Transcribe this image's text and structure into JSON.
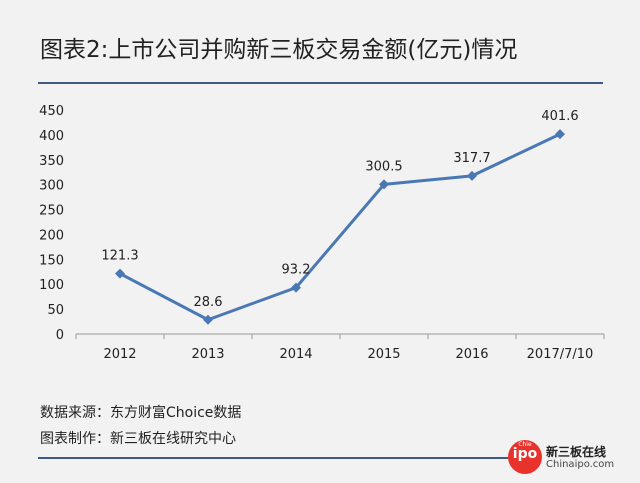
{
  "page": {
    "title": "图表2:上市公司并购新三板交易金额(亿元)情况",
    "source_note": "数据来源：东方财富Choice数据",
    "maker_note": "图表制作：新三板在线研究中心"
  },
  "logo": {
    "circle_sub": "Chie",
    "circle_text": "ipo",
    "name": "新三板在线",
    "domain": "Chinaipo.com"
  },
  "colors": {
    "line": "#4a78b4",
    "marker": "#4a78b4",
    "accent": "#e8332d"
  },
  "chart_data": {
    "type": "line",
    "title": "",
    "xlabel": "",
    "ylabel": "",
    "categories": [
      "2012",
      "2013",
      "2014",
      "2015",
      "2016",
      "2017/7/10"
    ],
    "series": [
      {
        "values": [
          121.3,
          28.6,
          93.2,
          300.5,
          317.7,
          401.6
        ],
        "labels": [
          "121.3",
          "28.6",
          "93.2",
          "300.5",
          "317.7",
          "401.6"
        ]
      }
    ],
    "ylim": [
      0,
      450
    ],
    "yticks": [
      "0",
      "50",
      "100",
      "150",
      "200",
      "250",
      "300",
      "350",
      "400",
      "450"
    ],
    "grid": false,
    "legend": "none"
  }
}
